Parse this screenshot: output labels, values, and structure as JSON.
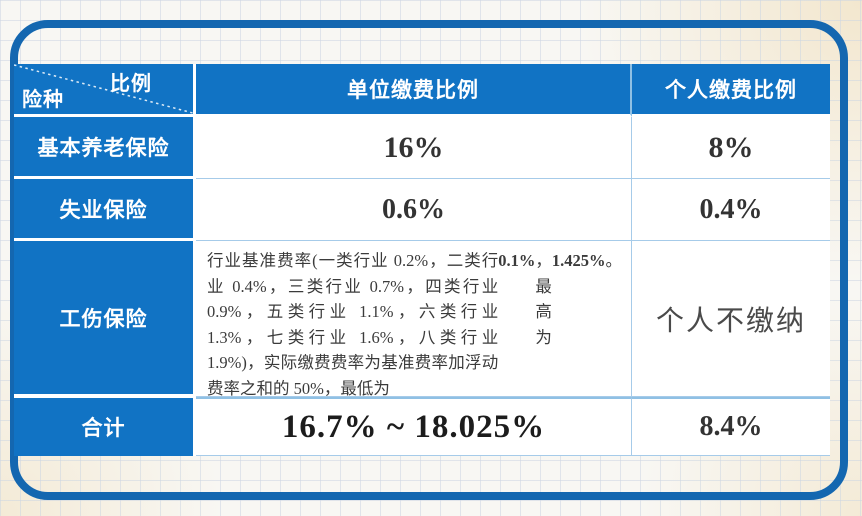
{
  "colors": {
    "cell_blue": "#1173c4",
    "frame_blue": "#1467b0",
    "grid_line": "#cdd6e2",
    "thin_border": "#a6cbe9",
    "value_text": "#333333"
  },
  "table": {
    "corner": {
      "top_right": "比例",
      "bottom_left": "险种"
    },
    "columns": [
      {
        "label": "单位缴费比例"
      },
      {
        "label": "个人缴费比例"
      }
    ],
    "rows": [
      {
        "label": "基本养老保险",
        "unit": "16%",
        "personal": "8%"
      },
      {
        "label": "失业保险",
        "unit": "0.6%",
        "personal": "0.4%"
      },
      {
        "label": "工伤保险",
        "personal": "个人不缴纳",
        "unit_segments": [
          {
            "text": "行业基准费率(一类行业 0.2%，二类行业 0.4%，三类行业 0.7%，四类行业 0.9%，五类行业 1.1%，六类行业 1.3%，七类行业 1.6%，八类行业 1.9%)，实际缴费费率为基准费率加浮动费率之和的 50%，最低为 ",
            "bold": false
          },
          {
            "text": "0.1%",
            "bold": true
          },
          {
            "text": "，最高为 ",
            "bold": false
          },
          {
            "text": "1.425%",
            "bold": true
          },
          {
            "text": "。",
            "bold": false
          }
        ]
      },
      {
        "label": "合计",
        "unit": "16.7% ~ 18.025%",
        "personal": "8.4%"
      }
    ]
  }
}
